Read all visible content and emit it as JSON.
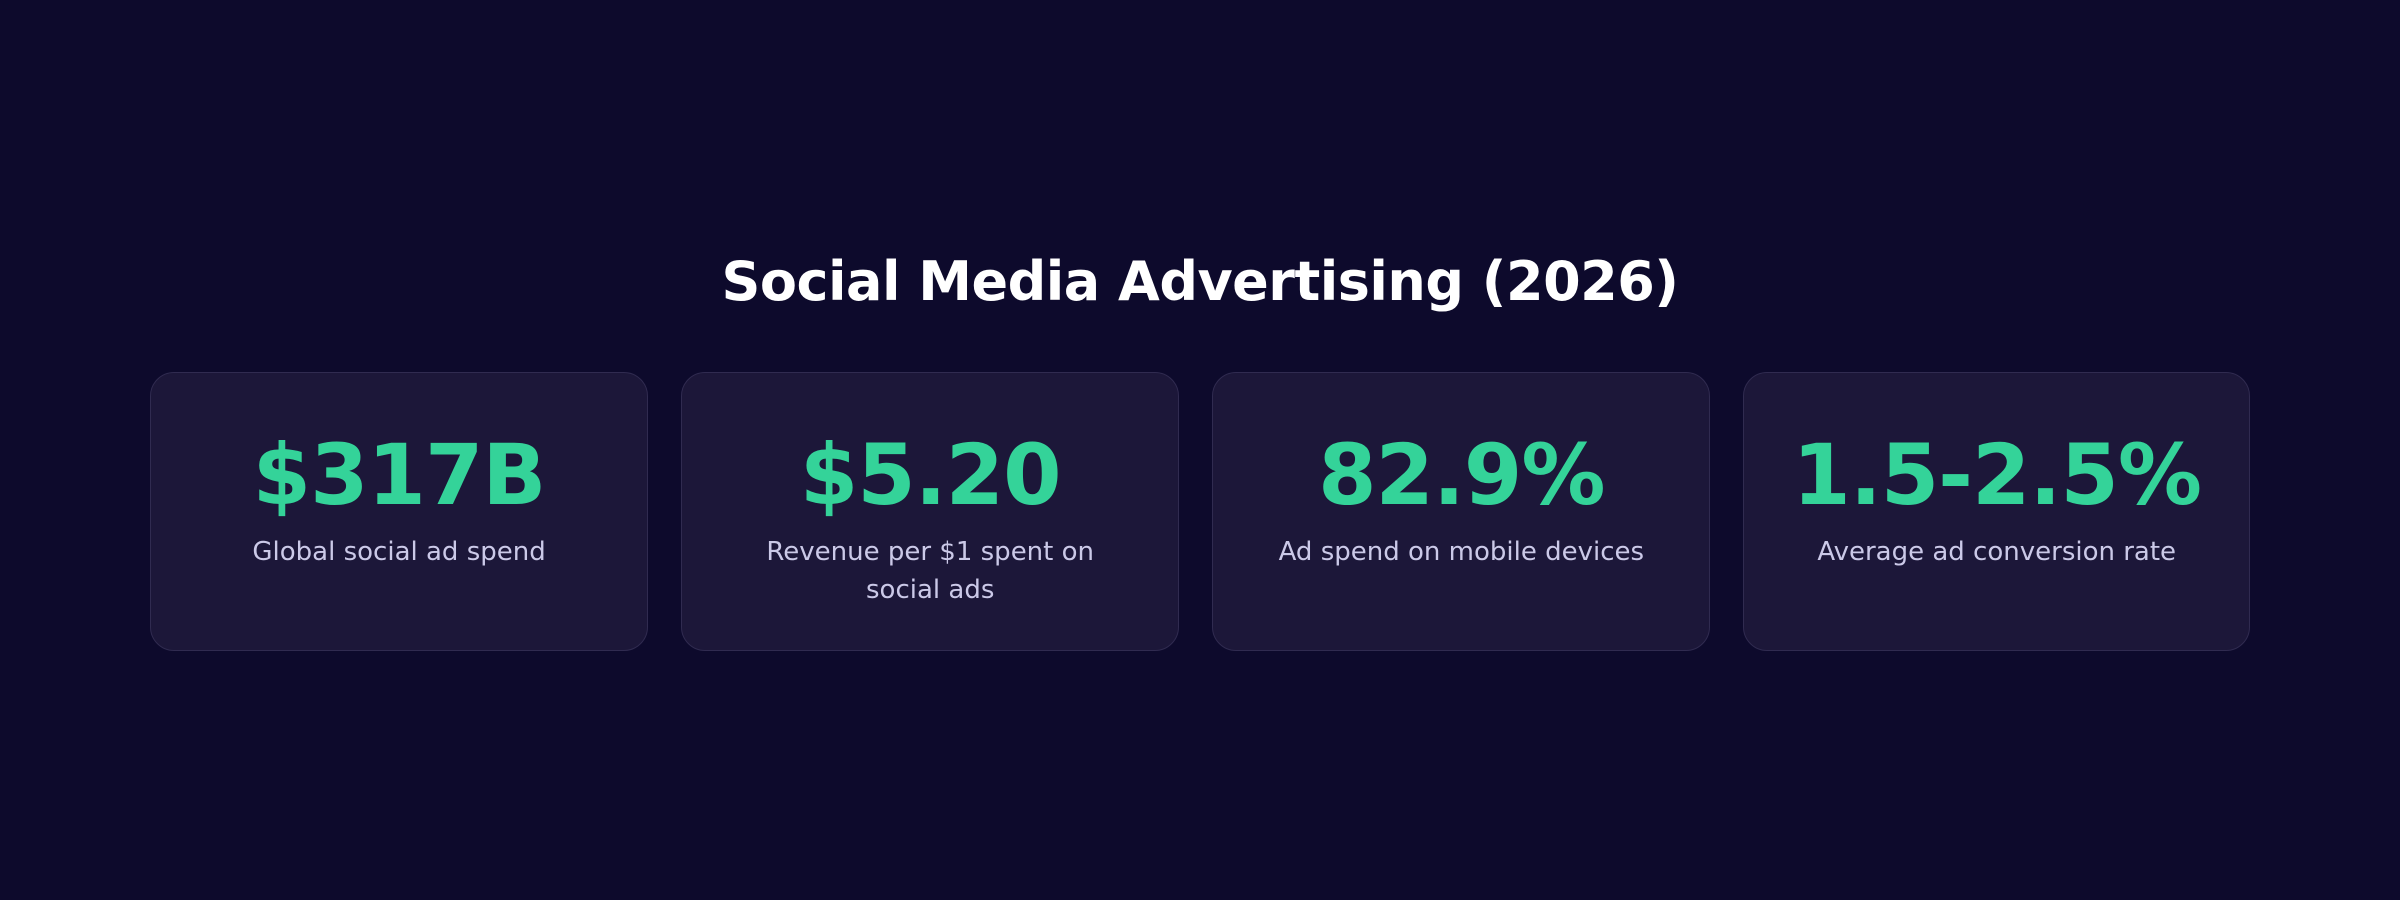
{
  "title": "Social Media Advertising (2026)",
  "colors": {
    "background": "#0d0a2c",
    "card_background": "#1c1739",
    "card_border": "#302b50",
    "accent": "#34d399",
    "title": "#ffffff",
    "label": "#cbc9e8"
  },
  "stats": [
    {
      "value": "$317B",
      "label": "Global social ad spend"
    },
    {
      "value": "$5.20",
      "label": "Revenue per $1 spent on social ads"
    },
    {
      "value": "82.9%",
      "label": "Ad spend on mobile devices"
    },
    {
      "value": "1.5-2.5%",
      "label": "Average ad conversion rate"
    }
  ]
}
